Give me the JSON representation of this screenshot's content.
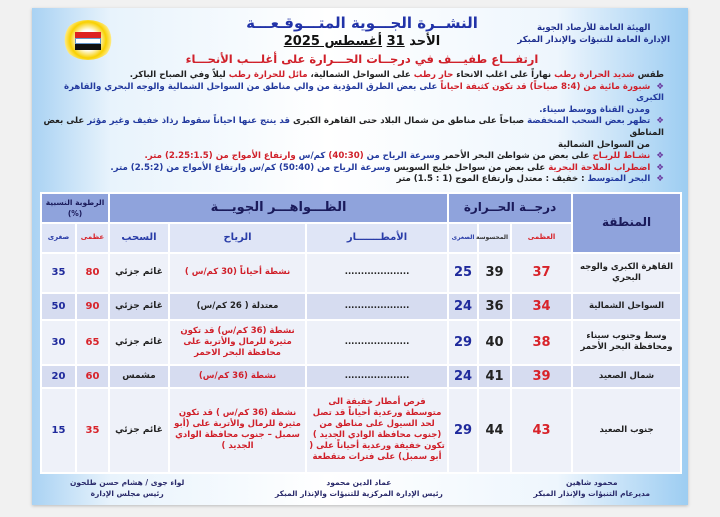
{
  "header": {
    "org_line1": "الهيئة العامة للأرصاد الجوية",
    "org_line2": "الإدارة العامة للتنبؤات والإنذار المبكر",
    "title": "النشــرة الجـــوية المتـــوقـعـــة",
    "date_prefix": "الأحد",
    "date_day": "31",
    "date_rest": "أغسطس 2025",
    "headline": "ارتفـــاع طفيـــف في درجــات الحـــرارة على أغلـــب الأنحـــاء",
    "logo": "EMA-logo"
  },
  "summary": [
    {
      "bullet": false,
      "segments": [
        {
          "t": "طقس ",
          "c": "k"
        },
        {
          "t": "شديد الحرارة رطب",
          "c": "r"
        },
        {
          "t": " نهاراً على اغلب الانحاء ",
          "c": "k"
        },
        {
          "t": "حار رطب",
          "c": "r"
        },
        {
          "t": " على السواحل الشمالية، ",
          "c": "k"
        },
        {
          "t": "مائل للحرارة رطب",
          "c": "r"
        },
        {
          "t": " ليلاً وفي الصباح الباكر.",
          "c": "k"
        }
      ]
    },
    {
      "bullet": true,
      "segments": [
        {
          "t": "شبورة مائية من (8:4 صباحاً) قد تكون كثيفة احياناً",
          "c": "r"
        },
        {
          "t": " على بعض الطرق المؤدية من والي مناطق من السواحل الشمالية والوجه البحري والقاهرة الكبرى",
          "c": "b"
        }
      ]
    },
    {
      "bullet": false,
      "segments": [
        {
          "t": "ومدن القناة ووسط سيناء.",
          "c": "b"
        }
      ]
    },
    {
      "bullet": true,
      "segments": [
        {
          "t": "تظهر بعض السحب المنخفضة",
          "c": "b"
        },
        {
          "t": " صباحاً على مناطق من شمال البلاد حتى القاهرة الكبرى ",
          "c": "k"
        },
        {
          "t": "قد ينتج عنها احياناً سقوط رذاذ خفيف وغير مؤثر",
          "c": "b"
        },
        {
          "t": " على بعض المناطق",
          "c": "k"
        }
      ]
    },
    {
      "bullet": false,
      "segments": [
        {
          "t": "من السواحل الشمالية",
          "c": "k"
        }
      ]
    },
    {
      "bullet": true,
      "segments": [
        {
          "t": "نشـاط للريـاح",
          "c": "r"
        },
        {
          "t": " على بعض من شواطئ البحر الأحمر ",
          "c": "k"
        },
        {
          "t": "وسرعة الرياح من ",
          "c": "b"
        },
        {
          "t": "(40:30)",
          "c": "r"
        },
        {
          "t": " كم/س ",
          "c": "b"
        },
        {
          "t": "وارتفاع الأمواج من (2.25:1.5) متر.",
          "c": "r"
        }
      ]
    },
    {
      "bullet": true,
      "segments": [
        {
          "t": "اضطراب الملاحة البحرية",
          "c": "r"
        },
        {
          "t": " على بعض من سواحل خليج السويس ",
          "c": "k"
        },
        {
          "t": "وسرعة الرياح من (50:40) كم/س وارتفاع الأمواج من (2.5:2) متر.",
          "c": "b"
        }
      ]
    },
    {
      "bullet": true,
      "segments": [
        {
          "t": "البحر المتوسط",
          "c": "b"
        },
        {
          "t": " : خفيف : معتدل       وارتفاع الموج (1 : 1.5) متر",
          "c": "k"
        }
      ]
    }
  ],
  "table": {
    "region_header": "المنطقة",
    "temp_header": "درجــة الحــرارة",
    "phenomena_header": "الظـــواهـــر الجويـــة",
    "humidity_header": "الرطوبة النسبية (%)",
    "sub": {
      "max": "العظمى",
      "felt": "المحسوسة",
      "min": "الصغرى",
      "rain": "الأمطـــــــار",
      "wind": "الرياح",
      "cloud": "السحب",
      "hmax": "عظمى",
      "hmin": "صغرى"
    },
    "rows": [
      {
        "region": "القاهرة الكبرى والوجه البحري",
        "max": "37",
        "felt": "39",
        "min": "25",
        "rain": "....................",
        "wind": "نشطة أحياناً (30 كم/س )",
        "wind_red": true,
        "cloud": "غائم جزئي",
        "hmax": "80",
        "hmin": "35"
      },
      {
        "region": "السواحل الشمالية",
        "max": "34",
        "felt": "36",
        "min": "24",
        "rain": "....................",
        "wind": "معتدلة ( 26 كم/س)",
        "wind_red": false,
        "cloud": "غائم جزئي",
        "hmax": "90",
        "hmin": "50"
      },
      {
        "region": "وسط وجنوب سيناء ومحافظة البحر الأحمر",
        "max": "38",
        "felt": "40",
        "min": "29",
        "rain": "....................",
        "wind": "نشطة (36 كم/س) قد تكون مثيرة للرمال والأتربة على محافظة البحر الاحمر",
        "wind_red": true,
        "cloud": "غائم جزئي",
        "hmax": "65",
        "hmin": "30"
      },
      {
        "region": "شمال الصعيد",
        "max": "39",
        "felt": "41",
        "min": "24",
        "rain": "....................",
        "wind": "نشطة (36 كم/س)",
        "wind_red": true,
        "cloud": "مشمس",
        "hmax": "60",
        "hmin": "20"
      },
      {
        "region": "جنوب الصعيد",
        "max": "43",
        "felt": "44",
        "min": "29",
        "rain": "فرص أمطار خفيفة الى متوسطة ورعدية أحياناً قد تصل لحد السيول على مناطق من (جنوب محافظة الوادي الجديد ) تكون خفيفة ورعدية أحياناً على ( أبو سمبل) على فترات متقطعة",
        "wind": "نشطة (36 كم/س ) قد تكون مثيرة للرمال والأتربة على (أبو سمبل – جنوب محافظة الوادي الجديد )",
        "wind_red": true,
        "cloud": "غائم جزئي",
        "hmax": "35",
        "hmin": "15"
      }
    ]
  },
  "signatures": [
    {
      "name": "محمود شاهين",
      "role": "مديرعام التنبؤات والإنذار المبكر"
    },
    {
      "name": "عماد الدين محمود",
      "role": "رئيس الإدارة المركزية للتنبؤات والإنذار المبكر"
    },
    {
      "name": "لواء جوى / هشام حسن طلحون",
      "role": "رئيس مجلس الإدارة"
    }
  ],
  "colors": {
    "header_band": "#8fa3dc",
    "subheader": "#dfe5f6",
    "max_temp": "#d8232a",
    "min_temp": "#1f2a9c",
    "title": "#2233a8"
  }
}
